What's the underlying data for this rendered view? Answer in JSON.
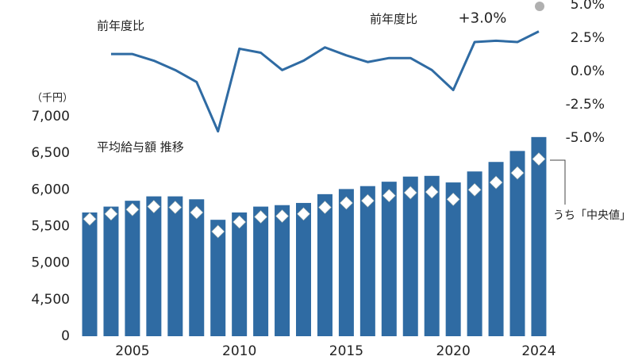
{
  "chart_data": [
    {
      "type": "line",
      "title": "前年度比",
      "categories": [
        null,
        null,
        2005,
        null,
        null,
        null,
        null,
        2010,
        null,
        null,
        null,
        null,
        2015,
        null,
        null,
        null,
        null,
        2020,
        null,
        null,
        null,
        2024
      ],
      "series": [
        {
          "name": "前年度比",
          "color": "#2f6ba3",
          "values": [
            null,
            1.3,
            1.3,
            0.8,
            0.1,
            -0.8,
            -4.5,
            1.7,
            1.4,
            0.1,
            0.8,
            1.8,
            1.2,
            0.7,
            1.0,
            1.0,
            0.1,
            -1.4,
            2.2,
            2.3,
            2.2,
            3.0
          ],
          "value_labels": [
            null,
            null,
            null,
            null,
            null,
            null,
            null,
            null,
            null,
            null,
            null,
            null,
            null,
            null,
            null,
            null,
            null,
            null,
            null,
            null,
            null,
            "+3.0%"
          ]
        }
      ],
      "ylim": [
        -5,
        5
      ],
      "yticks": [
        {
          "value": 5,
          "label": "5.0%"
        },
        {
          "value": 2.5,
          "label": "2.5%"
        },
        {
          "value": 0,
          "label": "0.0%"
        },
        {
          "value": -2.5,
          "label": "-2.5%"
        },
        {
          "value": -5,
          "label": "-5.0%"
        }
      ]
    },
    {
      "type": "bar",
      "title": "平均給与額 推移",
      "y_label": "（千円）",
      "categories": [
        null,
        null,
        2005,
        null,
        null,
        null,
        null,
        2010,
        null,
        null,
        null,
        null,
        2015,
        null,
        null,
        null,
        null,
        2020,
        null,
        null,
        null,
        2024
      ],
      "series": [
        {
          "color": "#2f6ba3",
          "values": [
            5690,
            5770,
            5850,
            5910,
            5910,
            5870,
            5590,
            5690,
            5770,
            5790,
            5820,
            5940,
            6010,
            6050,
            6110,
            6180,
            6190,
            6100,
            6250,
            6380,
            6530,
            6720
          ]
        },
        {
          "name": "うち「中央値」",
          "type": "diamond",
          "color": "#ffffff",
          "values": [
            5600,
            5670,
            5730,
            5770,
            5760,
            5690,
            5430,
            5560,
            5630,
            5640,
            5670,
            5760,
            5820,
            5850,
            5920,
            5960,
            5970,
            5870,
            6000,
            6100,
            6230,
            6420
          ]
        }
      ],
      "ylim": [
        0,
        7000
      ],
      "yticks": [
        0,
        {
          "value": 4500,
          "label": "4,500"
        },
        {
          "value": 5000,
          "label": "5,000"
        },
        {
          "value": 5500,
          "label": "5,500"
        },
        {
          "value": 6000,
          "label": "6,000"
        },
        {
          "value": 6500,
          "label": "6,500"
        },
        {
          "value": 7000,
          "label": "7,000"
        }
      ],
      "axis_break": true
    }
  ]
}
